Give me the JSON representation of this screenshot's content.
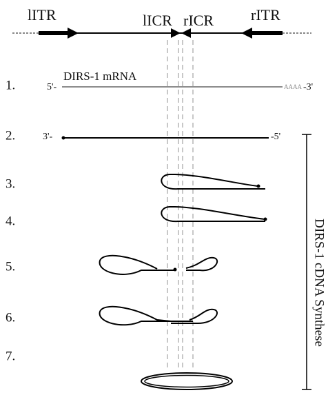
{
  "labels": {
    "litr": "lITR",
    "licr": "lICR",
    "ricr": "rICR",
    "ritr": "rITR"
  },
  "steps": [
    {
      "number": "1.",
      "left": "5'-",
      "name": "DIRS-1 mRNA",
      "tail": "AAAA",
      "right": "-3'"
    },
    {
      "number": "2.",
      "left": "3'-",
      "right": "-5'"
    },
    {
      "number": "3."
    },
    {
      "number": "4."
    },
    {
      "number": "5."
    },
    {
      "number": "6."
    },
    {
      "number": "7."
    }
  ],
  "bracket_label": "DIRS-1 cDNA Synthese"
}
